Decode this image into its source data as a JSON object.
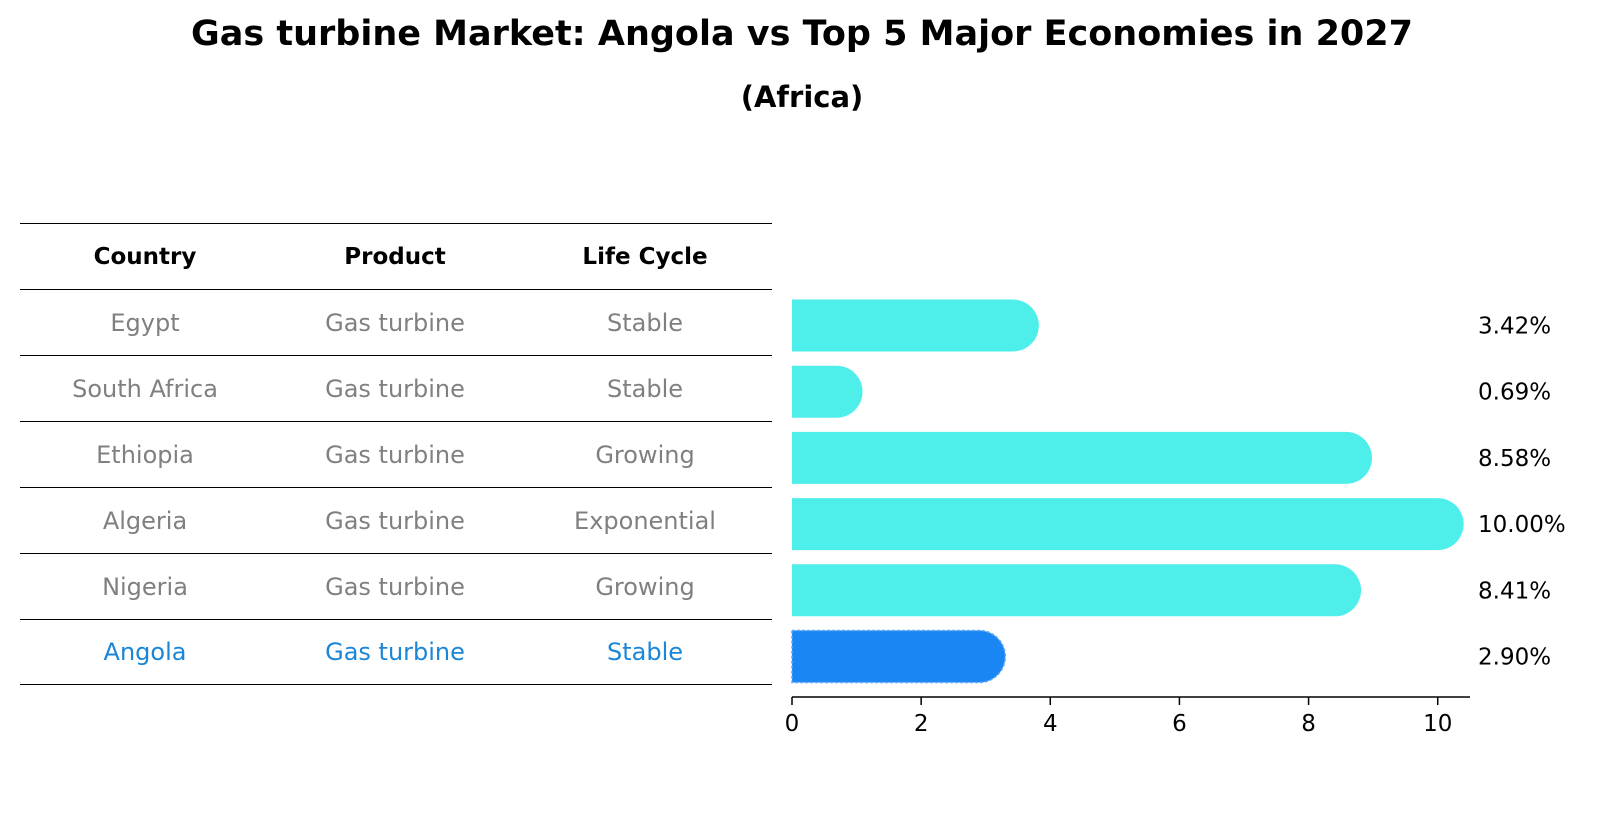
{
  "title": "Gas turbine Market: Angola vs Top 5 Major Economies in 2027",
  "subtitle": "(Africa)",
  "table": {
    "headers": [
      "Country",
      "Product",
      "Life Cycle"
    ],
    "rows": [
      [
        "Egypt",
        "Gas turbine",
        "Stable"
      ],
      [
        "South Africa",
        "Gas turbine",
        "Stable"
      ],
      [
        "Ethiopia",
        "Gas turbine",
        "Growing"
      ],
      [
        "Algeria",
        "Gas turbine",
        "Exponential"
      ],
      [
        "Nigeria",
        "Gas turbine",
        "Growing"
      ],
      [
        "Angola",
        "Gas turbine",
        "Stable"
      ]
    ],
    "highlight_row": "Angola"
  },
  "colors": {
    "bar": "#4eeeea",
    "highlight_bar": "#1a86f4",
    "text_gray": "#808080",
    "highlight_text": "#1a86d8"
  },
  "chart_data": {
    "type": "bar",
    "orientation": "horizontal",
    "categories": [
      "Egypt",
      "South Africa",
      "Ethiopia",
      "Algeria",
      "Nigeria",
      "Angola"
    ],
    "values": [
      3.42,
      0.69,
      8.58,
      10.0,
      8.41,
      2.9
    ],
    "value_labels": [
      "3.42%",
      "0.69%",
      "8.58%",
      "10.00%",
      "8.41%",
      "2.90%"
    ],
    "highlight": "Angola",
    "xlim": [
      0,
      10.5
    ],
    "xticks": [
      0,
      2,
      4,
      6,
      8,
      10
    ],
    "xlabel": "",
    "ylabel": "",
    "grid": false
  }
}
